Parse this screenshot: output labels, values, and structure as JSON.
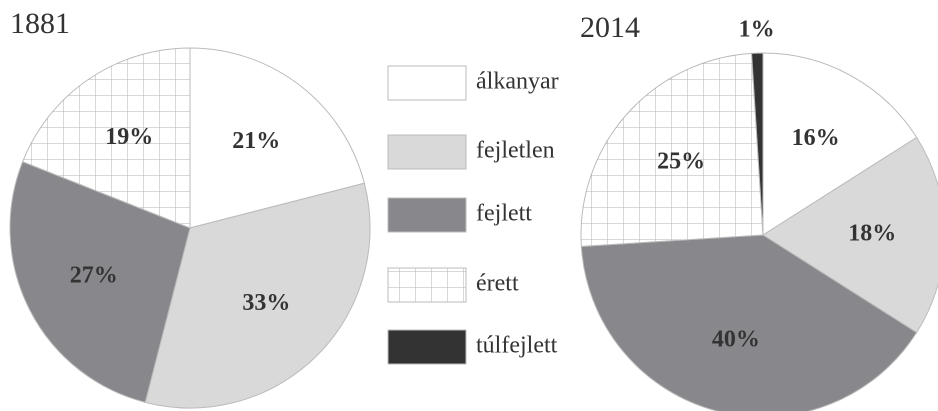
{
  "chart_data": [
    {
      "type": "pie",
      "title": "1881",
      "categories": [
        "álkanyar",
        "fejletlen",
        "fejlett",
        "érett"
      ],
      "values": [
        21,
        33,
        27,
        19
      ],
      "value_labels": [
        "21%",
        "33%",
        "27%",
        "19%"
      ],
      "colors": [
        "#ffffff",
        "#d9d9d9",
        "#88888c",
        "grid"
      ]
    },
    {
      "type": "pie",
      "title": "2014",
      "categories": [
        "álkanyar",
        "fejletlen",
        "fejlett",
        "érett",
        "túlfejlett"
      ],
      "values": [
        16,
        18,
        40,
        25,
        1
      ],
      "value_labels": [
        "16%",
        "18%",
        "40%",
        "25%",
        "1%"
      ],
      "colors": [
        "#ffffff",
        "#d9d9d9",
        "#88888c",
        "grid",
        "#333333"
      ]
    }
  ]
}
